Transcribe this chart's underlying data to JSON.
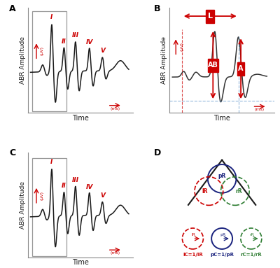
{
  "fig_width": 4.0,
  "fig_height": 3.83,
  "background": "#ffffff",
  "abr_color": "#1a1a1a",
  "red_color": "#cc0000",
  "axis_label": "ABR Amplitude",
  "time_label": "Time",
  "uv_label": "(μV)",
  "ms_label": "(ms)",
  "peaks_A": [
    "I",
    "II",
    "III",
    "IV",
    "V"
  ],
  "panel_bg": "#ffffff"
}
